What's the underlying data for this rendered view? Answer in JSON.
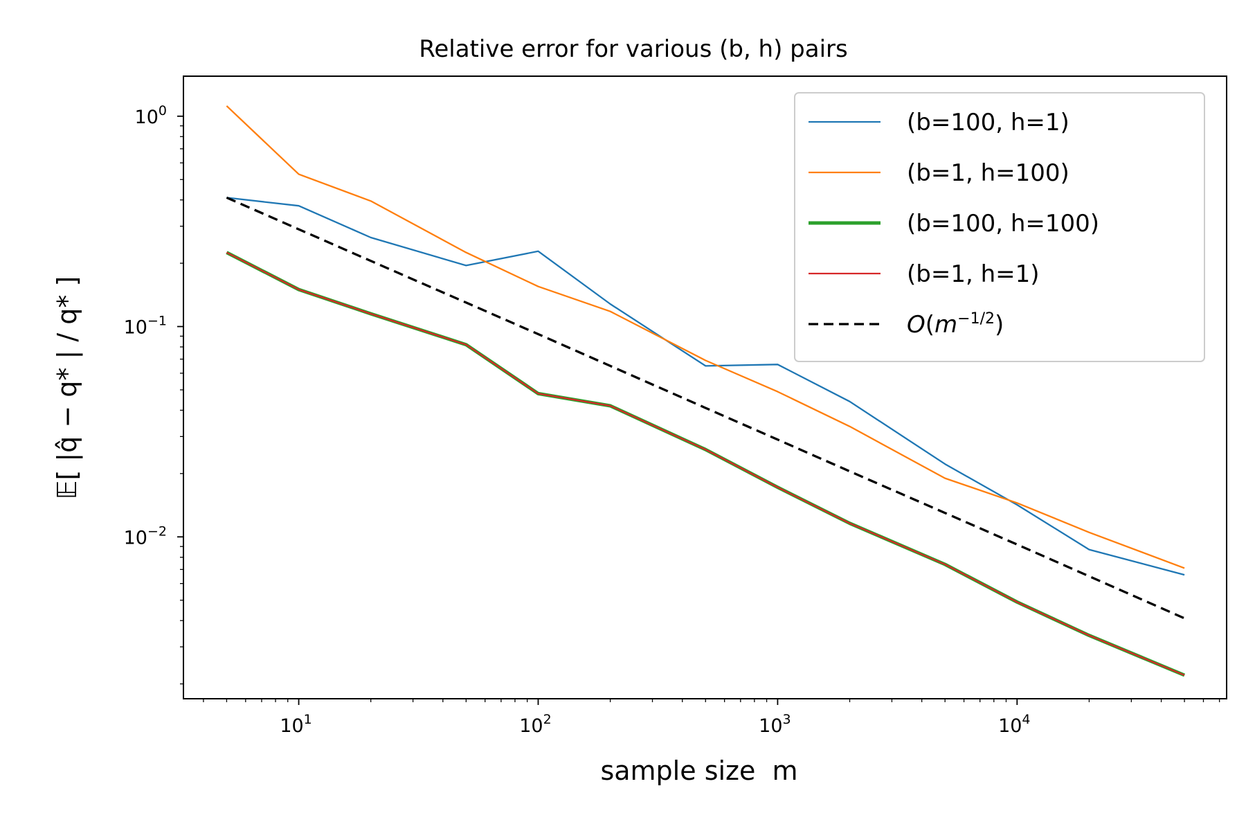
{
  "chart_data": {
    "type": "line",
    "title": "Relative error for various (b, h) pairs",
    "xlabel": "sample size  m",
    "ylabel": "𝔼[ |q̂ − q* | / q* ]",
    "xscale": "log",
    "yscale": "log",
    "xlim": [
      3.3,
      75000
    ],
    "ylim": [
      0.0017,
      1.55
    ],
    "x_ticks": [
      {
        "value": 10,
        "base": "10",
        "exp": "1"
      },
      {
        "value": 100,
        "base": "10",
        "exp": "2"
      },
      {
        "value": 1000,
        "base": "10",
        "exp": "3"
      },
      {
        "value": 10000,
        "base": "10",
        "exp": "4"
      }
    ],
    "y_ticks": [
      {
        "value": 1,
        "base": "10",
        "exp": "0"
      },
      {
        "value": 0.1,
        "base": "10",
        "exp": "−1"
      },
      {
        "value": 0.01,
        "base": "10",
        "exp": "−2"
      }
    ],
    "grid": false,
    "legend_position": "top-right",
    "x": [
      5,
      10,
      20,
      50,
      100,
      200,
      500,
      1000,
      2000,
      5000,
      10000,
      20000,
      50000
    ],
    "series": [
      {
        "name": "(b=100, h=1)",
        "color": "#1f77b4",
        "dash": "",
        "width": 2.3,
        "values": [
          0.41,
          0.375,
          0.265,
          0.195,
          0.228,
          0.128,
          0.065,
          0.066,
          0.044,
          0.0222,
          0.0142,
          0.0087,
          0.0066
        ]
      },
      {
        "name": "(b=1, h=100)",
        "color": "#ff7f0e",
        "dash": "",
        "width": 2.3,
        "values": [
          1.12,
          0.53,
          0.395,
          0.225,
          0.155,
          0.118,
          0.069,
          0.049,
          0.0335,
          0.019,
          0.0145,
          0.0105,
          0.0071
        ]
      },
      {
        "name": "(b=100, h=100)",
        "color": "#2ca02c",
        "dash": "",
        "width": 5,
        "values": [
          0.225,
          0.15,
          0.115,
          0.082,
          0.048,
          0.042,
          0.026,
          0.0172,
          0.0116,
          0.0074,
          0.0049,
          0.0034,
          0.0022
        ]
      },
      {
        "name": "(b=1, h=1)",
        "color": "#d62728",
        "dash": "",
        "width": 2.3,
        "values": [
          0.225,
          0.15,
          0.115,
          0.082,
          0.048,
          0.042,
          0.026,
          0.0172,
          0.0116,
          0.0074,
          0.0049,
          0.0034,
          0.0022
        ]
      },
      {
        "name": "O(m^{-1/2})",
        "color": "#000000",
        "dash": "14,8",
        "width": 3.3,
        "values": [
          0.41,
          0.29,
          0.205,
          0.13,
          0.092,
          0.065,
          0.041,
          0.029,
          0.0205,
          0.013,
          0.0092,
          0.0065,
          0.0041
        ]
      }
    ]
  }
}
